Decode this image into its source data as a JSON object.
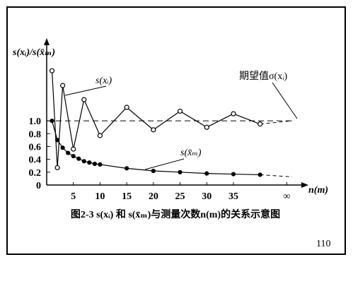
{
  "chart_data": {
    "type": "line",
    "y_label": "s(xᵢ)/s(x̄ₘ)",
    "x_label": "n(m)",
    "caption": "图2-3 s(xᵢ) 和 s(x̄ₘ)与测量次数n(m)的关系示意图",
    "page_number": "110",
    "annotations": [
      "s(xᵢ)",
      "s(x̄ₘ)",
      "期望值σ(xᵢ)"
    ],
    "xlim": [
      0,
      48
    ],
    "ylim": [
      0,
      2.2
    ],
    "xticks": [
      5,
      10,
      15,
      20,
      25,
      30,
      35,
      {
        "value": 45,
        "label": "∞"
      }
    ],
    "yticks": [
      0,
      0.2,
      0.4,
      0.6,
      {
        "value": 1,
        "label": "1.0"
      },
      0.8
    ],
    "reference": 1,
    "series": [
      {
        "color": "#000",
        "marker": "open",
        "x": [
          1,
          2,
          3,
          5,
          7,
          10,
          15,
          20,
          25,
          30,
          35,
          40
        ],
        "values": [
          1.78,
          0.27,
          1.55,
          0.56,
          1.33,
          0.77,
          1.21,
          0.86,
          1.15,
          0.9,
          1.11,
          0.95
        ]
      },
      {
        "color": "#000",
        "marker": "filled",
        "x": [
          1,
          2,
          3,
          4,
          5,
          6,
          7,
          8,
          9,
          10,
          15,
          20,
          25,
          30,
          35,
          40
        ],
        "values": [
          1.0,
          0.7,
          0.58,
          0.5,
          0.45,
          0.41,
          0.37,
          0.35,
          0.33,
          0.32,
          0.26,
          0.22,
          0.2,
          0.18,
          0.17,
          0.16
        ]
      }
    ]
  }
}
